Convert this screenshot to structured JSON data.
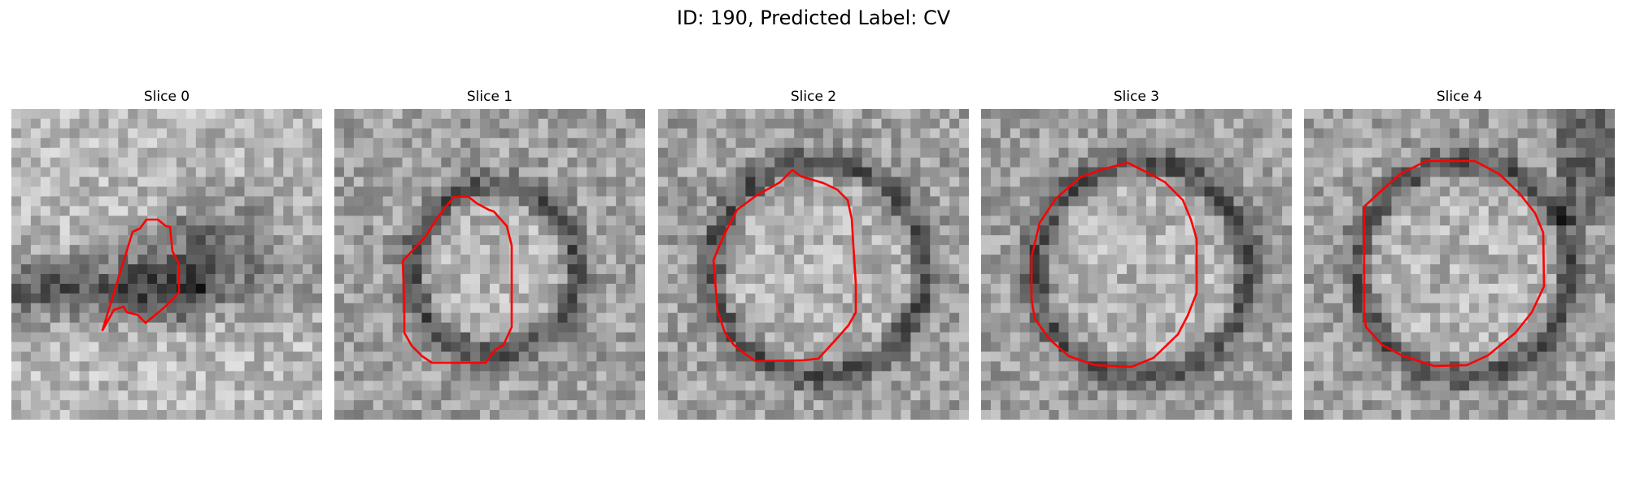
{
  "figure": {
    "suptitle": "ID: 190, Predicted Label: CV"
  },
  "slices": [
    {
      "title": "Slice 0"
    },
    {
      "title": "Slice 1"
    },
    {
      "title": "Slice 2"
    },
    {
      "title": "Slice 3"
    },
    {
      "title": "Slice 4"
    }
  ],
  "colors": {
    "contour": "#ff0000",
    "background": "#ffffff"
  }
}
